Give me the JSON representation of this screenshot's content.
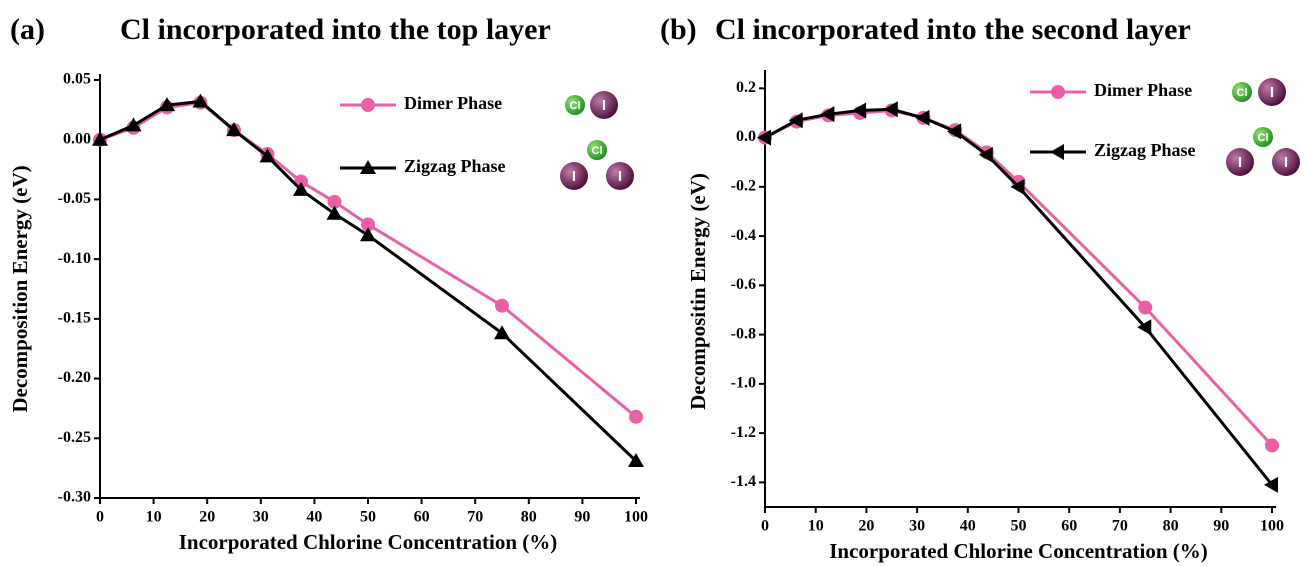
{
  "chart_data": [
    {
      "type": "line",
      "panel_label": "(a)",
      "title": "Cl incorporated into the top layer",
      "x_label": "Incorporated Chlorine Concentration (%)",
      "y_label": "Decomposition Energy (eV)",
      "x": [
        0,
        6.25,
        12.5,
        18.75,
        25,
        31.25,
        37.5,
        43.75,
        50,
        75,
        100
      ],
      "series": [
        {
          "name": "Dimer Phase",
          "color": "#ea5fa6",
          "marker": "circle",
          "values": [
            0,
            0.01,
            0.027,
            0.031,
            0.008,
            -0.012,
            -0.035,
            -0.052,
            -0.071,
            -0.139,
            -0.232
          ]
        },
        {
          "name": "Zigzag Phase",
          "color": "#000000",
          "marker": "triangle",
          "values": [
            0,
            0.012,
            0.029,
            0.032,
            0.008,
            -0.014,
            -0.042,
            -0.062,
            -0.08,
            -0.162,
            -0.269
          ]
        }
      ],
      "xlim": [
        0,
        100
      ],
      "xticks": [
        0,
        10,
        20,
        30,
        40,
        50,
        60,
        70,
        80,
        90,
        100
      ],
      "ylim": [
        -0.3,
        0.05
      ],
      "yticks": [
        {
          "value": -0.3,
          "label": "-0.30"
        },
        -0.25,
        {
          "value": -0.2,
          "label": "-0.20"
        },
        -0.15,
        {
          "value": -0.1,
          "label": "-0.10"
        },
        -0.05,
        {
          "value": 0,
          "label": "0.00"
        },
        0.05
      ],
      "icon_labels": {
        "chlorine": "Cl",
        "iodine": "I"
      }
    },
    {
      "type": "line",
      "panel_label": "(b)",
      "title": "Cl incorporated into the second layer",
      "x_label": "Incorporated Chlorine Concentration (%)",
      "y_label": "Decompositin Energy (eV)",
      "x": [
        0,
        6.25,
        12.5,
        18.75,
        25,
        31.25,
        37.5,
        43.75,
        50,
        75,
        100
      ],
      "series": [
        {
          "name": "Dimer Phase",
          "color": "#ea5fa6",
          "marker": "circle",
          "values": [
            0,
            0.065,
            0.09,
            0.1,
            0.11,
            0.08,
            0.03,
            -0.06,
            -0.18,
            -0.69,
            -1.25
          ]
        },
        {
          "name": "Zigzag Phase",
          "color": "#000000",
          "marker": "triangle-left",
          "values": [
            0,
            0.07,
            0.095,
            0.11,
            0.115,
            0.08,
            0.025,
            -0.07,
            -0.2,
            -0.77,
            -1.41
          ]
        }
      ],
      "xlim": [
        0,
        100
      ],
      "xticks": [
        0,
        10,
        20,
        30,
        40,
        50,
        60,
        70,
        80,
        90,
        100
      ],
      "ylim": [
        -1.5,
        0.25
      ],
      "yticks": [
        -1.4,
        -1.2,
        {
          "value": -1.0,
          "label": "-1.0"
        },
        -0.8,
        -0.6,
        -0.4,
        -0.2,
        {
          "value": 0,
          "label": "0.0"
        },
        0.2
      ],
      "icon_labels": {
        "chlorine": "Cl",
        "iodine": "I"
      }
    }
  ]
}
